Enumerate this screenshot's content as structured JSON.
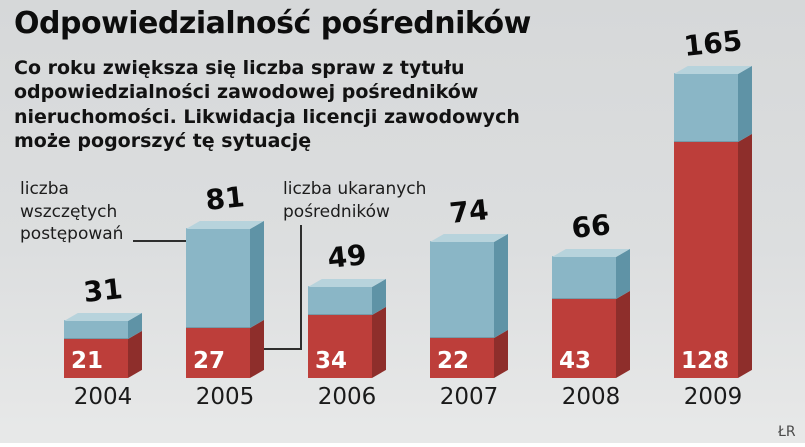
{
  "title": "Odpowiedzialność pośredników",
  "subtitle_lines": [
    "Co roku zwiększa się liczba spraw z tytułu",
    "odpowiedzialności zawodowej pośredników",
    "nieruchomości. Likwidacja licencji zawodowych",
    "może pogorszyć tę sytuację"
  ],
  "annotations": {
    "blue_label_lines": [
      "liczba",
      "wszczętych",
      "postępowań"
    ],
    "red_label_lines": [
      "liczba ukaranych",
      "pośredników"
    ]
  },
  "credit": "ŁR",
  "colors": {
    "red_front": "#bd3e3a",
    "red_side": "#8e2e2b",
    "blue_front": "#8ab6c6",
    "blue_side": "#5f93a6",
    "blue_top": "#b7d3dc",
    "background": "#dcdedf"
  },
  "chart_data": {
    "type": "bar",
    "stacked": true,
    "title": "Odpowiedzialność pośredników",
    "xlabel": "",
    "ylabel": "",
    "ylim": [
      0,
      165
    ],
    "grid": false,
    "legend_position": "annotations",
    "categories": [
      "2004",
      "2005",
      "2006",
      "2007",
      "2008",
      "2009"
    ],
    "series": [
      {
        "name": "liczba ukaranych pośredników",
        "color": "#bd3e3a",
        "values": [
          21,
          27,
          34,
          22,
          43,
          128
        ]
      },
      {
        "name": "liczba wszczętych postępowań (pozostała część)",
        "color": "#8ab6c6",
        "values": [
          10,
          54,
          15,
          52,
          23,
          37
        ]
      }
    ],
    "totals": [
      31,
      81,
      49,
      74,
      66,
      165
    ],
    "total_label_meaning": "liczba wszczętych postępowań (suma słupka)"
  }
}
